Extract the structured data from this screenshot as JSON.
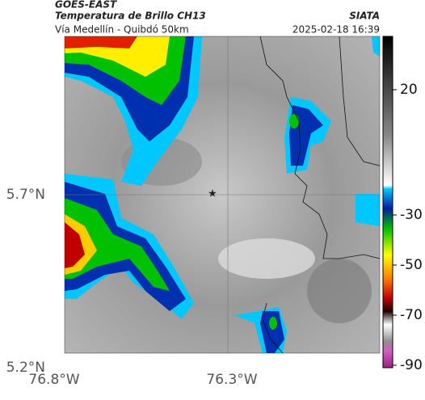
{
  "header": {
    "satellite": "GOES-EAST",
    "product": "Temperatura de Brillo CH13",
    "route": "Vía Medellín - Quibdó 50km",
    "source": "SIATA",
    "datetime": "2025-02-18 16:39"
  },
  "axes": {
    "lat_labels": [
      "5.7°N",
      "5.2°N"
    ],
    "lon_labels": [
      "76.8°W",
      "76.3°W"
    ]
  },
  "colorbar": {
    "ticks": [
      20,
      -30,
      -50,
      -70,
      -90
    ]
  }
}
